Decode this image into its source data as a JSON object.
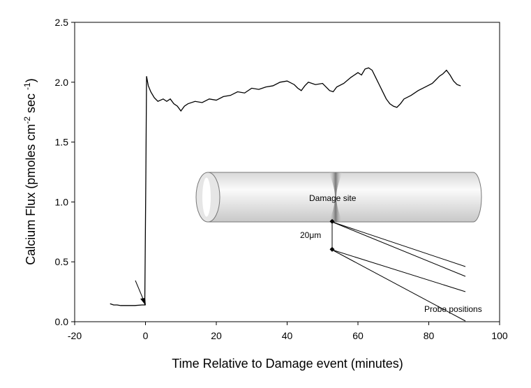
{
  "chart_data": {
    "type": "line",
    "x_label": "Time Relative to Damage event (minutes)",
    "y_label_parts": [
      "Calcium Flux (pmoles cm",
      "-2",
      " sec ",
      "-1",
      ")"
    ],
    "annotations": [
      "Damage site",
      "20μm",
      "Probe positions"
    ],
    "x": [
      -10,
      -9,
      -8,
      -7,
      -5,
      -3,
      -1,
      -0.2,
      0.1,
      0.3,
      0.8,
      1.5,
      2.5,
      3.5,
      5,
      6,
      7,
      8,
      9,
      10,
      11,
      12,
      14,
      16,
      18,
      20,
      22,
      24,
      26,
      28,
      30,
      32,
      34,
      36,
      38,
      40,
      42,
      43,
      44,
      45,
      46,
      48,
      50,
      51,
      52,
      53,
      54,
      56,
      58,
      60,
      61,
      62,
      63,
      64,
      65,
      66,
      67,
      68,
      69,
      70,
      71,
      72,
      73,
      75,
      77,
      79,
      81,
      82,
      83,
      84,
      85,
      86,
      87,
      88,
      89
    ],
    "values": [
      0.15,
      0.14,
      0.14,
      0.135,
      0.135,
      0.135,
      0.14,
      0.14,
      1.2,
      2.05,
      1.97,
      1.92,
      1.87,
      1.84,
      1.86,
      1.84,
      1.86,
      1.82,
      1.8,
      1.76,
      1.8,
      1.82,
      1.84,
      1.83,
      1.86,
      1.85,
      1.88,
      1.89,
      1.92,
      1.91,
      1.95,
      1.94,
      1.96,
      1.97,
      2.0,
      2.01,
      1.98,
      1.95,
      1.93,
      1.97,
      2.0,
      1.98,
      1.99,
      1.96,
      1.93,
      1.92,
      1.96,
      1.99,
      2.04,
      2.08,
      2.06,
      2.11,
      2.12,
      2.1,
      2.04,
      1.98,
      1.92,
      1.86,
      1.82,
      1.8,
      1.79,
      1.82,
      1.86,
      1.89,
      1.93,
      1.96,
      1.99,
      2.02,
      2.05,
      2.07,
      2.1,
      2.06,
      2.01,
      1.98,
      1.97
    ],
    "color": "#000000",
    "xlim": [
      -20,
      100
    ],
    "xticks": [
      -20,
      0,
      20,
      40,
      60,
      80,
      100
    ],
    "ylim": [
      0,
      2.5
    ],
    "yticks": [
      {
        "value": 0,
        "label": "0.0"
      },
      0.5,
      {
        "value": 1,
        "label": "1.0"
      },
      1.5,
      {
        "value": 2,
        "label": "2.0"
      },
      2.5
    ]
  }
}
